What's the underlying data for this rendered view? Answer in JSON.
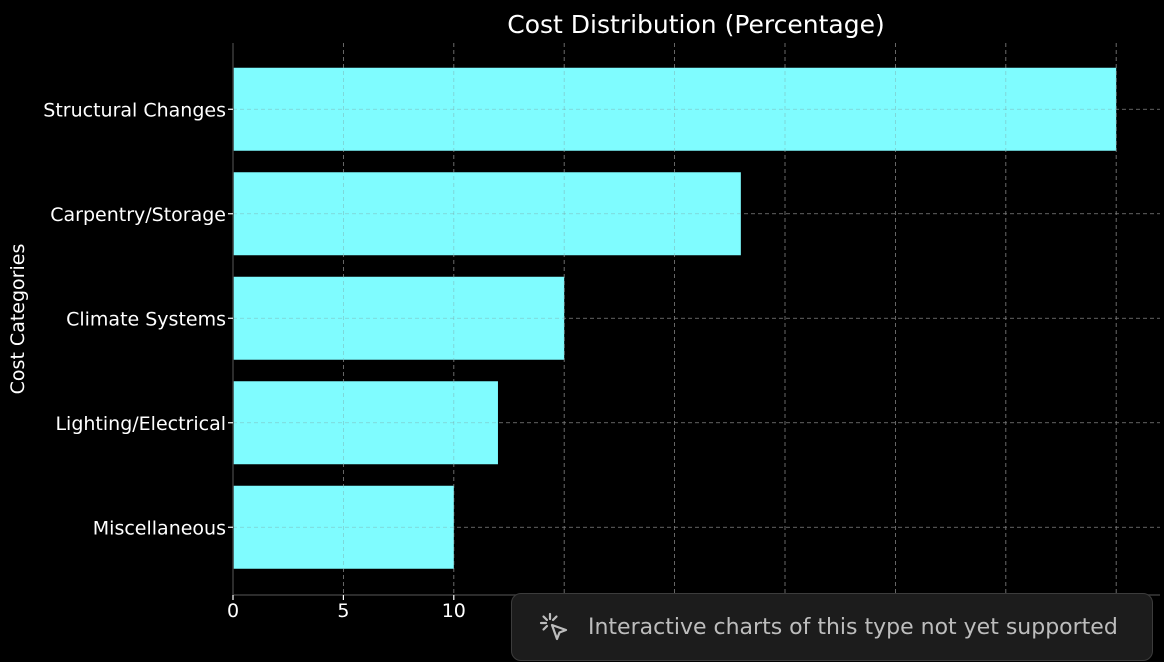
{
  "chart_data": {
    "type": "bar",
    "orientation": "horizontal",
    "title": "Cost Distribution (Percentage)",
    "xlabel": "",
    "ylabel": "Cost Categories",
    "categories": [
      "Structural Changes",
      "Carpentry/Storage",
      "Climate Systems",
      "Lighting/Electrical",
      "Miscellaneous"
    ],
    "values": [
      40,
      23,
      15,
      12,
      10
    ],
    "x_ticks": [
      "0",
      "5",
      "10",
      "15",
      "20",
      "25",
      "30",
      "35",
      "40"
    ],
    "xlim": [
      0,
      41
    ],
    "grid": true,
    "bar_color": "#7ffcff",
    "background_color": "#000000"
  },
  "toast": {
    "icon": "sparkle-cursor-icon",
    "text": "Interactive charts of this type not yet supported"
  }
}
